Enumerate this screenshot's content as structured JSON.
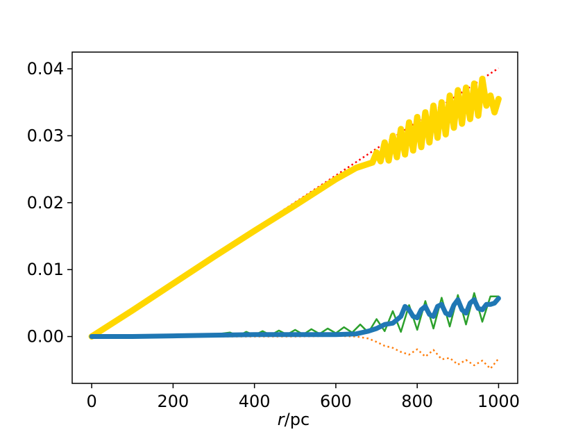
{
  "chart_data": {
    "type": "line",
    "title": "",
    "xlabel_italic": "r",
    "xlabel_rest": "/pc",
    "ylabel": "",
    "xlim": [
      -48,
      1047
    ],
    "ylim": [
      -0.007,
      0.0425
    ],
    "xticks": [
      0,
      200,
      400,
      600,
      800,
      1000
    ],
    "xtick_labels": [
      "0",
      "200",
      "400",
      "600",
      "800",
      "1000"
    ],
    "yticks": [
      0.0,
      0.01,
      0.02,
      0.03,
      0.04
    ],
    "ytick_labels": [
      "0.00",
      "0.01",
      "0.02",
      "0.03",
      "0.04"
    ],
    "grid": false,
    "legend": "none",
    "series": [
      {
        "color": "#ff0000",
        "style": "dotted",
        "width": 2.5,
        "x": [
          0,
          1000
        ],
        "y": [
          0.0,
          0.0401
        ]
      },
      {
        "color": "#ffd700",
        "style": "solid",
        "width": 9,
        "x": [
          0,
          100,
          200,
          300,
          400,
          500,
          600,
          650,
          690,
          700,
          710,
          720,
          730,
          740,
          750,
          760,
          770,
          780,
          790,
          800,
          810,
          820,
          830,
          840,
          850,
          860,
          870,
          880,
          890,
          900,
          910,
          920,
          930,
          940,
          950,
          960,
          970,
          980,
          990,
          1000
        ],
        "y": [
          0.0,
          0.0039,
          0.0079,
          0.0119,
          0.0158,
          0.0196,
          0.0235,
          0.0252,
          0.026,
          0.0275,
          0.0262,
          0.029,
          0.0263,
          0.03,
          0.0268,
          0.031,
          0.0272,
          0.032,
          0.0278,
          0.0328,
          0.0283,
          0.0335,
          0.029,
          0.0345,
          0.0297,
          0.035,
          0.0302,
          0.036,
          0.0312,
          0.0368,
          0.0318,
          0.0372,
          0.0325,
          0.0378,
          0.033,
          0.0385,
          0.0345,
          0.036,
          0.0335,
          0.0355
        ]
      },
      {
        "color": "#ff7f0e",
        "style": "dotted",
        "width": 2.5,
        "x": [
          0,
          100,
          200,
          300,
          400,
          500,
          600,
          650,
          680,
          700,
          720,
          740,
          760,
          780,
          800,
          820,
          840,
          860,
          880,
          900,
          920,
          940,
          960,
          980,
          1000
        ],
        "y": [
          0.0,
          0.0,
          0.0,
          0.0,
          0.0,
          0.0,
          0.0001,
          0.0,
          -0.0003,
          -0.0008,
          -0.0014,
          -0.0017,
          -0.0023,
          -0.0027,
          -0.0019,
          -0.003,
          -0.002,
          -0.0034,
          -0.0032,
          -0.0042,
          -0.0035,
          -0.0043,
          -0.0036,
          -0.0048,
          -0.0033
        ]
      },
      {
        "color": "#2ca02c",
        "style": "solid",
        "width": 2.5,
        "x": [
          0,
          100,
          200,
          300,
          340,
          360,
          380,
          400,
          420,
          440,
          460,
          480,
          500,
          520,
          540,
          560,
          580,
          600,
          620,
          640,
          660,
          680,
          700,
          720,
          740,
          760,
          780,
          800,
          820,
          840,
          860,
          880,
          900,
          920,
          940,
          960,
          980,
          1000
        ],
        "y": [
          0.0,
          0.0,
          0.0001,
          0.0003,
          0.0006,
          0.0001,
          0.0007,
          0.0002,
          0.0008,
          0.0002,
          0.0009,
          0.0003,
          0.001,
          0.0003,
          0.0011,
          0.0004,
          0.0012,
          0.0005,
          0.0014,
          0.0006,
          0.0018,
          0.0006,
          0.0026,
          0.0008,
          0.0038,
          0.0007,
          0.0047,
          0.001,
          0.0053,
          0.0012,
          0.0058,
          0.0015,
          0.0062,
          0.0018,
          0.0065,
          0.0022,
          0.006,
          0.006
        ]
      },
      {
        "color": "#1f77b4",
        "style": "solid",
        "width": 7,
        "x": [
          0,
          100,
          200,
          300,
          400,
          500,
          600,
          650,
          680,
          700,
          720,
          740,
          760,
          770,
          780,
          790,
          800,
          810,
          820,
          830,
          840,
          850,
          860,
          870,
          880,
          890,
          900,
          910,
          920,
          930,
          940,
          950,
          960,
          970,
          980,
          990,
          1000
        ],
        "y": [
          0.0,
          0.0,
          0.0001,
          0.0002,
          0.0003,
          0.0003,
          0.0003,
          0.0004,
          0.0008,
          0.0012,
          0.0018,
          0.002,
          0.003,
          0.0045,
          0.004,
          0.003,
          0.0028,
          0.004,
          0.0045,
          0.0033,
          0.003,
          0.0045,
          0.0048,
          0.0035,
          0.0032,
          0.0047,
          0.0055,
          0.004,
          0.0035,
          0.005,
          0.0055,
          0.0042,
          0.004,
          0.0048,
          0.0048,
          0.005,
          0.0057
        ]
      }
    ]
  }
}
